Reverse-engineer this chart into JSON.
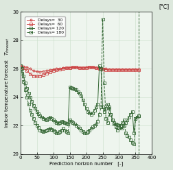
{
  "xlabel": "Prediction horizon number   [-]",
  "yunits": "[°C]",
  "xlim": [
    0,
    400
  ],
  "ylim": [
    20.0,
    30.0
  ],
  "xticks": [
    0,
    50,
    100,
    150,
    200,
    250,
    300,
    350,
    400
  ],
  "yticks": [
    20,
    22,
    24,
    26,
    28,
    30
  ],
  "bg_color": "#e8f0e8",
  "series": {
    "d30_x": [
      0,
      10,
      20,
      30,
      40,
      50,
      60,
      70,
      80,
      90,
      100,
      110,
      120,
      130,
      140,
      150,
      160,
      170,
      180,
      190,
      200,
      210,
      220,
      230,
      240,
      250,
      260,
      270,
      280,
      290,
      300,
      310,
      320,
      330,
      340,
      350,
      360
    ],
    "d30_y": [
      26.2,
      26.15,
      26.1,
      26.0,
      25.85,
      25.8,
      25.78,
      25.82,
      25.88,
      25.92,
      25.95,
      26.0,
      26.02,
      26.05,
      26.07,
      26.08,
      26.1,
      26.1,
      26.08,
      26.07,
      26.1,
      26.12,
      26.1,
      26.07,
      26.05,
      26.03,
      26.0,
      25.98,
      25.97,
      25.96,
      25.96,
      25.96,
      25.96,
      25.96,
      25.96,
      25.96,
      25.96
    ],
    "d60_x": [
      0,
      10,
      20,
      30,
      40,
      50,
      60,
      70,
      80,
      90,
      100,
      110,
      120,
      130,
      140,
      150,
      160,
      170,
      180,
      190,
      200,
      210,
      220,
      230,
      240,
      250,
      260,
      270,
      280,
      290,
      300,
      310,
      320,
      330,
      340,
      350,
      360
    ],
    "d60_y": [
      26.2,
      26.05,
      25.85,
      25.65,
      25.5,
      25.48,
      25.5,
      25.58,
      25.68,
      25.78,
      25.85,
      25.9,
      25.95,
      26.0,
      26.05,
      26.07,
      26.1,
      26.1,
      26.07,
      26.05,
      26.08,
      26.1,
      26.1,
      26.07,
      26.02,
      25.98,
      25.94,
      25.93,
      25.92,
      25.92,
      25.92,
      25.92,
      25.92,
      25.92,
      25.92,
      25.92,
      25.92
    ],
    "d120_x": [
      0,
      5,
      10,
      15,
      20,
      25,
      30,
      35,
      40,
      45,
      50,
      55,
      60,
      65,
      70,
      75,
      80,
      85,
      90,
      95,
      100,
      105,
      110,
      115,
      120,
      125,
      130,
      135,
      140,
      145,
      150,
      155,
      160,
      165,
      170,
      175,
      180,
      185,
      190,
      195,
      200,
      205,
      210,
      215,
      220,
      225,
      230,
      235,
      240,
      245,
      250,
      255,
      260,
      265,
      270,
      275,
      280,
      285,
      290,
      295,
      300,
      305,
      310,
      315,
      320,
      325,
      330,
      335,
      340,
      345,
      350,
      355,
      360
    ],
    "d120_y": [
      26.2,
      26.0,
      25.5,
      25.0,
      24.6,
      24.3,
      24.0,
      23.7,
      23.4,
      23.2,
      23.0,
      22.85,
      22.7,
      22.6,
      22.5,
      22.45,
      22.4,
      22.5,
      22.6,
      22.5,
      22.4,
      22.3,
      22.2,
      22.15,
      22.2,
      22.3,
      22.25,
      22.2,
      22.15,
      22.1,
      24.7,
      24.65,
      24.6,
      24.55,
      24.5,
      24.4,
      24.3,
      24.1,
      23.8,
      23.5,
      23.2,
      23.0,
      22.9,
      22.8,
      22.9,
      23.1,
      23.3,
      23.5,
      26.2,
      26.0,
      23.3,
      23.0,
      23.2,
      23.5,
      23.3,
      22.8,
      22.4,
      22.2,
      22.1,
      22.05,
      22.0,
      21.9,
      21.8,
      22.0,
      22.2,
      22.4,
      22.6,
      22.8,
      23.0,
      21.5,
      22.5,
      22.6,
      22.7
    ],
    "d180_x": [
      0,
      5,
      10,
      15,
      20,
      25,
      30,
      35,
      40,
      45,
      50,
      55,
      60,
      65,
      70,
      75,
      80,
      85,
      90,
      95,
      100,
      105,
      110,
      115,
      120,
      125,
      130,
      135,
      140,
      145,
      150,
      155,
      160,
      165,
      170,
      175,
      180,
      185,
      190,
      195,
      200,
      205,
      210,
      215,
      220,
      225,
      230,
      235,
      240,
      245,
      250,
      255,
      260,
      265,
      270,
      275,
      280,
      285,
      290,
      295,
      300,
      305,
      310,
      315,
      320,
      325,
      330,
      335,
      340,
      345,
      350,
      355,
      360
    ],
    "d180_y": [
      26.2,
      25.7,
      25.1,
      24.5,
      24.0,
      23.5,
      23.1,
      22.8,
      22.5,
      22.2,
      22.0,
      21.85,
      21.7,
      21.65,
      21.6,
      21.65,
      21.7,
      21.75,
      21.8,
      21.75,
      21.7,
      21.6,
      21.5,
      21.5,
      21.6,
      21.7,
      21.8,
      21.7,
      21.6,
      21.5,
      22.4,
      22.3,
      22.2,
      22.1,
      22.0,
      21.9,
      21.8,
      21.7,
      21.6,
      21.5,
      21.5,
      21.6,
      21.7,
      21.8,
      21.9,
      22.0,
      22.1,
      22.3,
      22.8,
      23.3,
      29.5,
      25.0,
      22.5,
      22.2,
      23.2,
      22.8,
      22.4,
      22.1,
      21.9,
      21.7,
      21.8,
      22.0,
      22.2,
      22.4,
      21.5,
      21.3,
      21.2,
      21.0,
      20.8,
      20.7,
      22.5,
      22.6,
      22.7
    ]
  }
}
